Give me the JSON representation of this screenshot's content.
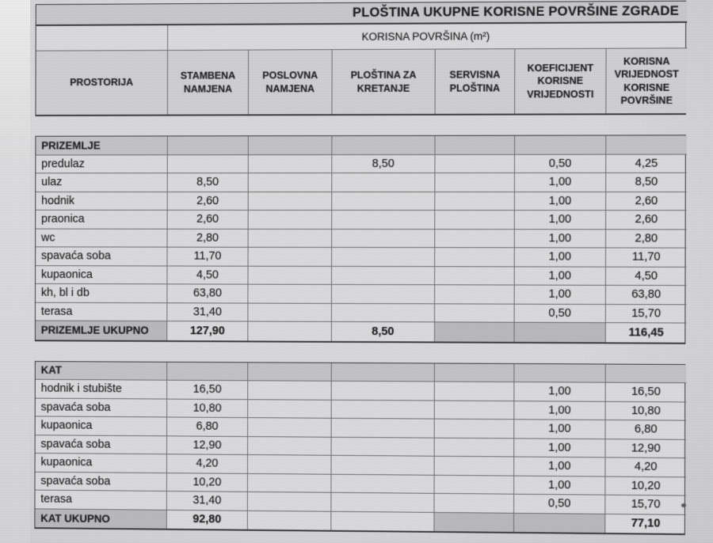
{
  "document": {
    "title": "PLOŠTINA UKUPNE KORISNE POVRŠINE ZGRADE",
    "group_header": "KORISNA POVRŠINA (m²)",
    "columns": [
      "PROSTORIJA",
      "STAMBENA\nNAMJENA",
      "POSLOVNA\nNAMJENA",
      "PLOŠTINA ZA\nKRETANJE",
      "SERVISNA\nPLOŠTINA",
      "KOEFICIJENT\nKORISNE\nVRIJEDNOSTI",
      "KORISNA\nVRIJEDNOST\nKORISNE\nPOVRŠINE"
    ],
    "sections": [
      {
        "label": "PRIZEMLJE",
        "rows": [
          [
            "predulaz",
            "",
            "",
            "8,50",
            "",
            "0,50",
            "4,25"
          ],
          [
            "ulaz",
            "8,50",
            "",
            "",
            "",
            "1,00",
            "8,50"
          ],
          [
            "hodnik",
            "2,60",
            "",
            "",
            "",
            "1,00",
            "2,60"
          ],
          [
            "praonica",
            "2,60",
            "",
            "",
            "",
            "1,00",
            "2,60"
          ],
          [
            "wc",
            "2,80",
            "",
            "",
            "",
            "1,00",
            "2,80"
          ],
          [
            "spavaća soba",
            "11,70",
            "",
            "",
            "",
            "1,00",
            "11,70"
          ],
          [
            "kupaonica",
            "4,50",
            "",
            "",
            "",
            "1,00",
            "4,50"
          ],
          [
            "kh, bl i db",
            "63,80",
            "",
            "",
            "",
            "1,00",
            "63,80"
          ],
          [
            "terasa",
            "31,40",
            "",
            "",
            "",
            "0,50",
            "15,70"
          ]
        ],
        "total": [
          "PRIZEMLJE UKUPNO",
          "127,90",
          "",
          "8,50",
          "",
          "",
          "116,45"
        ],
        "total_shaded": [
          true,
          false,
          false,
          false,
          true,
          true,
          false
        ]
      },
      {
        "label": "KAT",
        "rows": [
          [
            "hodnik i stubište",
            "16,50",
            "",
            "",
            "",
            "1,00",
            "16,50"
          ],
          [
            "spavaća soba",
            "10,80",
            "",
            "",
            "",
            "1,00",
            "10,80"
          ],
          [
            "kupaonica",
            "6,80",
            "",
            "",
            "",
            "1,00",
            "6,80"
          ],
          [
            "spavaća soba",
            "12,90",
            "",
            "",
            "",
            "1,00",
            "12,90"
          ],
          [
            "kupaonica",
            "4,20",
            "",
            "",
            "",
            "1,00",
            "4,20"
          ],
          [
            "spavaća soba",
            "10,20",
            "",
            "",
            "",
            "1,00",
            "10,20"
          ],
          [
            "terasa",
            "31,40",
            "",
            "",
            "",
            "0,50",
            "15,70"
          ]
        ],
        "total": [
          "KAT UKUPNO",
          "92,80",
          "",
          "",
          "",
          "",
          "77,10"
        ],
        "total_shaded": [
          true,
          false,
          false,
          false,
          true,
          true,
          false
        ]
      }
    ],
    "colors": {
      "text": "#1e1e20",
      "cell_bg": "#dadadc",
      "shaded_header": "#c8c8ca",
      "shaded_colhdr": "#cfcfd1",
      "shaded_section": "#c3c3c6",
      "shaded_total": "#b9b9bc",
      "border": "#6f6f72",
      "border_strong": "#3c3c40"
    }
  }
}
